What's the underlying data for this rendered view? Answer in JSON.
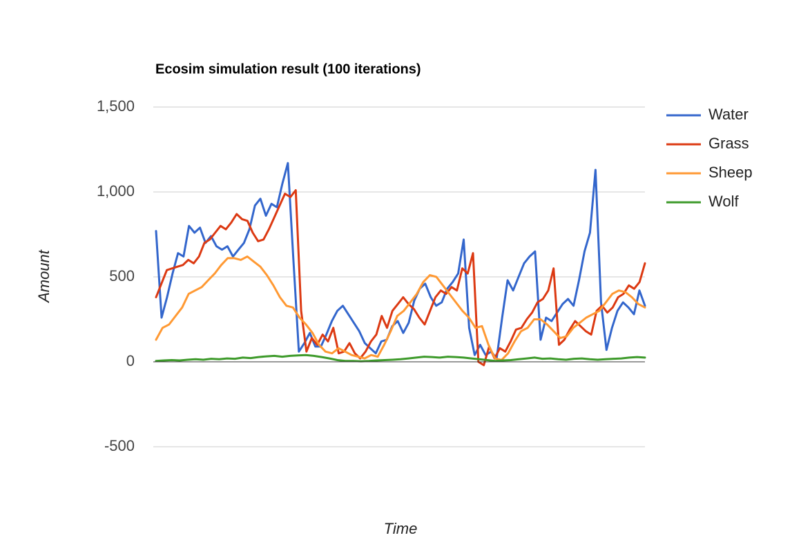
{
  "chart_data": {
    "type": "line",
    "title": "Ecosim simulation result (100 iterations)",
    "x_label": "Time",
    "y_label": "Amount",
    "ylim": [
      -500,
      1500
    ],
    "yticks": [
      {
        "value": -500,
        "label": "-500"
      },
      0,
      500,
      {
        "value": 1000,
        "label": "1,000"
      },
      {
        "value": 1500,
        "label": "1,500"
      }
    ],
    "grid": true,
    "legend": "right",
    "series": [
      {
        "name": "Water",
        "color": "#3366cc",
        "values": [
          770,
          260,
          380,
          520,
          640,
          620,
          800,
          760,
          790,
          700,
          740,
          680,
          660,
          680,
          620,
          660,
          700,
          780,
          920,
          960,
          860,
          930,
          910,
          1050,
          1170,
          600,
          60,
          110,
          170,
          90,
          90,
          160,
          240,
          300,
          330,
          280,
          230,
          180,
          110,
          80,
          50,
          120,
          130,
          210,
          240,
          170,
          230,
          360,
          430,
          460,
          380,
          330,
          350,
          430,
          470,
          520,
          720,
          200,
          40,
          100,
          40,
          60,
          20,
          260,
          480,
          420,
          500,
          580,
          620,
          650,
          130,
          260,
          240,
          290,
          340,
          370,
          330,
          480,
          650,
          760,
          1130,
          350,
          70,
          200,
          300,
          350,
          320,
          280,
          420,
          330
        ]
      },
      {
        "name": "Grass",
        "color": "#dc3912",
        "values": [
          380,
          460,
          540,
          550,
          560,
          570,
          600,
          580,
          620,
          700,
          720,
          760,
          800,
          780,
          820,
          870,
          840,
          830,
          760,
          710,
          720,
          780,
          850,
          920,
          990,
          970,
          1010,
          300,
          60,
          140,
          100,
          160,
          120,
          200,
          50,
          60,
          110,
          50,
          20,
          60,
          120,
          160,
          270,
          200,
          300,
          340,
          380,
          340,
          310,
          260,
          220,
          300,
          380,
          420,
          400,
          440,
          420,
          550,
          520,
          640,
          0,
          -20,
          90,
          20,
          80,
          60,
          120,
          190,
          200,
          250,
          290,
          350,
          370,
          420,
          550,
          100,
          130,
          190,
          240,
          210,
          180,
          160,
          300,
          330,
          290,
          320,
          380,
          400,
          450,
          430,
          470,
          580
        ]
      },
      {
        "name": "Sheep",
        "color": "#ff9933",
        "values": [
          130,
          200,
          220,
          270,
          320,
          400,
          420,
          440,
          480,
          520,
          570,
          610,
          610,
          600,
          620,
          590,
          560,
          510,
          450,
          380,
          330,
          320,
          260,
          220,
          170,
          100,
          60,
          50,
          80,
          60,
          40,
          30,
          20,
          40,
          30,
          100,
          180,
          270,
          300,
          350,
          400,
          470,
          510,
          500,
          450,
          400,
          350,
          300,
          260,
          200,
          210,
          100,
          20,
          10,
          50,
          120,
          180,
          200,
          250,
          250,
          220,
          180,
          140,
          150,
          200,
          230,
          260,
          280,
          300,
          350,
          400,
          420,
          410,
          380,
          340,
          320
        ]
      },
      {
        "name": "Wolf",
        "color": "#3d9a2a",
        "values": [
          5,
          8,
          10,
          8,
          12,
          15,
          12,
          18,
          15,
          20,
          18,
          25,
          22,
          28,
          32,
          35,
          30,
          35,
          38,
          40,
          35,
          28,
          20,
          10,
          5,
          5,
          3,
          5,
          8,
          10,
          12,
          15,
          20,
          25,
          30,
          28,
          25,
          30,
          28,
          25,
          20,
          15,
          10,
          5,
          8,
          10,
          15,
          20,
          25,
          18,
          20,
          15,
          12,
          18,
          20,
          15,
          12,
          15,
          18,
          20,
          25,
          28,
          25
        ]
      }
    ]
  }
}
